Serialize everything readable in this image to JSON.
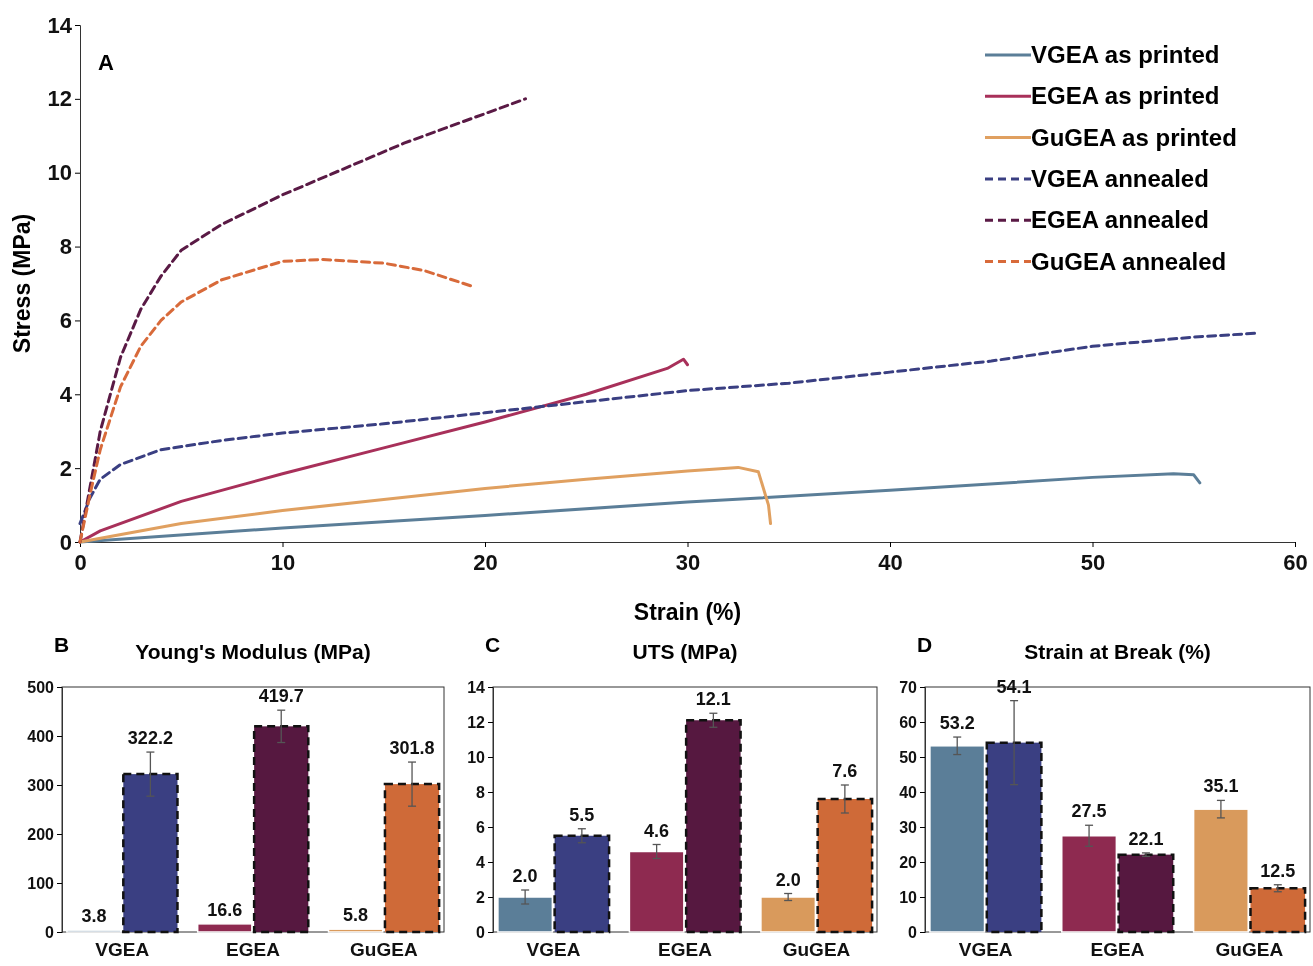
{
  "chart_data": [
    {
      "type": "line",
      "xlabel": "Strain (%)",
      "ylabel": "Stress (MPa)",
      "annotations": [
        "A"
      ],
      "xlim": [
        0,
        60
      ],
      "xticks": [
        0,
        10,
        20,
        30,
        40,
        50,
        60
      ],
      "ylim": [
        0,
        14
      ],
      "yticks": [
        0,
        2,
        4,
        6,
        8,
        10,
        12,
        14
      ],
      "legend": "top right",
      "grid": false,
      "series": [
        {
          "name": "VGEA as printed",
          "color": "#5b7e98",
          "line_style": "solid",
          "x": [
            0,
            10,
            20,
            30,
            40,
            50,
            54,
            55,
            55.3
          ],
          "values": [
            0,
            0.38,
            0.72,
            1.08,
            1.4,
            1.75,
            1.85,
            1.82,
            1.6
          ]
        },
        {
          "name": "EGEA as printed",
          "color": "#a8305a",
          "line_style": "solid",
          "x": [
            0,
            1,
            5,
            10,
            15,
            20,
            25,
            29,
            29.8,
            30
          ],
          "values": [
            0,
            0.3,
            1.1,
            1.85,
            2.55,
            3.25,
            4.0,
            4.7,
            4.95,
            4.8
          ]
        },
        {
          "name": "GuGEA as printed",
          "color": "#e0a060",
          "line_style": "solid",
          "x": [
            0,
            5,
            10,
            15,
            20,
            25,
            30,
            32.5,
            33.5,
            34,
            34.1
          ],
          "values": [
            0,
            0.5,
            0.85,
            1.15,
            1.45,
            1.7,
            1.92,
            2.02,
            1.9,
            1.0,
            0.5
          ]
        },
        {
          "name": "VGEA annealed",
          "color": "#3a3f82",
          "line_style": "dashed",
          "x": [
            0,
            0.5,
            1,
            2,
            4,
            7,
            10,
            15,
            20,
            25,
            30,
            35,
            40,
            45,
            50,
            55,
            58
          ],
          "values": [
            0.5,
            1.2,
            1.7,
            2.1,
            2.5,
            2.75,
            2.95,
            3.2,
            3.5,
            3.8,
            4.1,
            4.3,
            4.6,
            4.9,
            5.3,
            5.55,
            5.65
          ]
        },
        {
          "name": "EGEA annealed",
          "color": "#5a1a45",
          "line_style": "dashed",
          "x": [
            0,
            0.5,
            1,
            2,
            3,
            4,
            5,
            7,
            10,
            13,
            16,
            19,
            22
          ],
          "values": [
            0,
            1.5,
            3,
            5,
            6.3,
            7.2,
            7.9,
            8.6,
            9.4,
            10.1,
            10.8,
            11.4,
            12.0
          ]
        },
        {
          "name": "GuGEA annealed",
          "color": "#d86a3a",
          "line_style": "dashed",
          "x": [
            0,
            0.5,
            1,
            2,
            3,
            4,
            5,
            7,
            10,
            12,
            15,
            17,
            19.5
          ],
          "values": [
            0,
            1.3,
            2.5,
            4.2,
            5.3,
            6,
            6.5,
            7.1,
            7.6,
            7.65,
            7.55,
            7.35,
            6.9
          ]
        }
      ]
    },
    {
      "type": "bar",
      "title": "Young's Modulus (MPa)",
      "annotations": [
        "B"
      ],
      "categories": [
        "VGEA",
        "EGEA",
        "GuGEA"
      ],
      "ylim": [
        0,
        500
      ],
      "yticks": [
        0,
        100,
        200,
        300,
        400,
        500
      ],
      "grid": false,
      "series": [
        {
          "colors": [
            "#5b7e98",
            "#8e2a50",
            "#d99a5c"
          ],
          "line_style": "solid",
          "values": [
            3.8,
            16.6,
            5.8
          ],
          "value_labels": [
            "3.8",
            "16.6",
            "5.8"
          ],
          "errors": [
            null,
            null,
            null
          ]
        },
        {
          "colors": [
            "#3a3f82",
            "#561840",
            "#cf6a38"
          ],
          "line_style": "dashed",
          "values": [
            322.2,
            419.7,
            301.8
          ],
          "value_labels": [
            "322.2",
            "419.7",
            "301.8"
          ],
          "errors": [
            45,
            33,
            45
          ]
        }
      ]
    },
    {
      "type": "bar",
      "title": "UTS (MPa)",
      "annotations": [
        "C"
      ],
      "categories": [
        "VGEA",
        "EGEA",
        "GuGEA"
      ],
      "ylim": [
        0,
        14
      ],
      "yticks": [
        0,
        2,
        4,
        6,
        8,
        10,
        12,
        14
      ],
      "grid": false,
      "series": [
        {
          "colors": [
            "#5b7e98",
            "#8e2a50",
            "#d99a5c"
          ],
          "line_style": "solid",
          "values": [
            2.0,
            4.6,
            2.0
          ],
          "value_labels": [
            "2.0",
            "4.6",
            "2.0"
          ],
          "errors": [
            0.4,
            0.4,
            0.2
          ]
        },
        {
          "colors": [
            "#3a3f82",
            "#561840",
            "#cf6a38"
          ],
          "line_style": "dashed",
          "values": [
            5.5,
            12.1,
            7.6
          ],
          "value_labels": [
            "5.5",
            "12.1",
            "7.6"
          ],
          "errors": [
            0.4,
            0.4,
            0.8
          ]
        }
      ]
    },
    {
      "type": "bar",
      "title": "Strain at Break (%)",
      "annotations": [
        "D"
      ],
      "categories": [
        "VGEA",
        "EGEA",
        "GuGEA"
      ],
      "ylim": [
        0,
        70
      ],
      "yticks": [
        0,
        10,
        20,
        30,
        40,
        50,
        60,
        70
      ],
      "grid": false,
      "series": [
        {
          "colors": [
            "#5b7e98",
            "#8e2a50",
            "#d99a5c"
          ],
          "line_style": "solid",
          "values": [
            53.2,
            27.5,
            35.1
          ],
          "value_labels": [
            "53.2",
            "27.5",
            "35.1"
          ],
          "errors": [
            2.5,
            3,
            2.5
          ]
        },
        {
          "colors": [
            "#3a3f82",
            "#561840",
            "#cf6a38"
          ],
          "line_style": "dashed",
          "values": [
            54.1,
            22.1,
            12.5
          ],
          "value_labels": [
            "54.1",
            "22.1",
            "12.5"
          ],
          "errors": [
            12,
            0.5,
            1
          ]
        }
      ]
    }
  ]
}
